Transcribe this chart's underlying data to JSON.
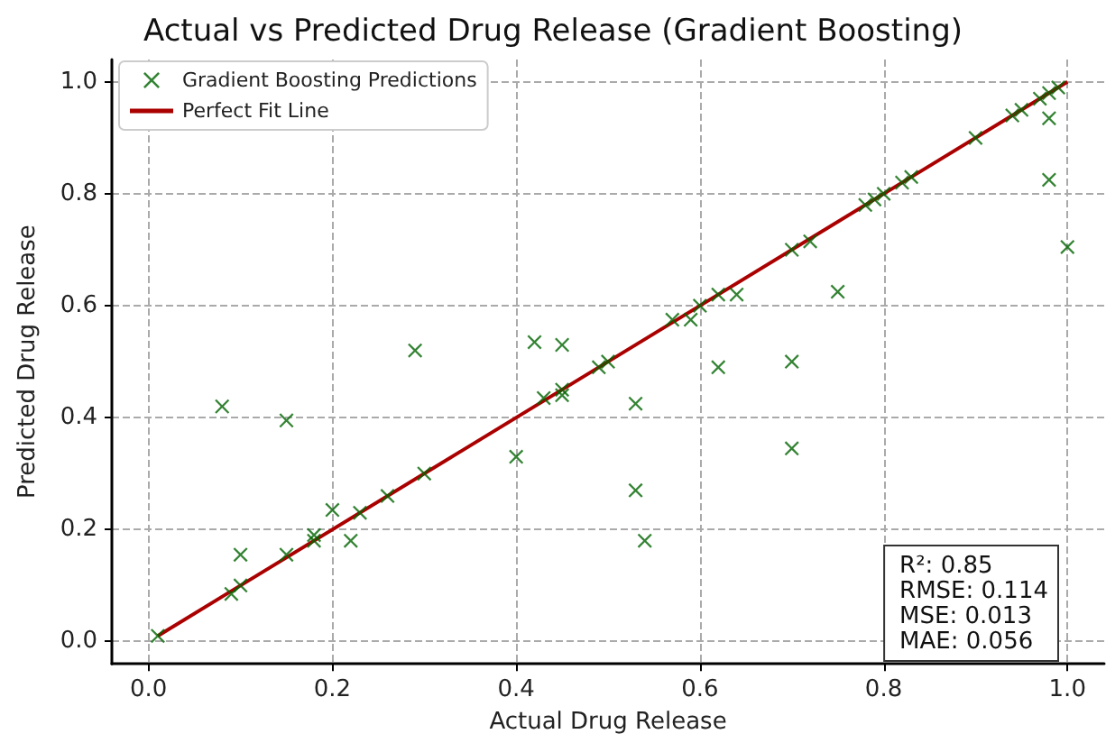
{
  "chart_data": {
    "type": "scatter",
    "title": "Actual vs Predicted Drug Release (Gradient Boosting)",
    "xlabel": "Actual Drug Release",
    "ylabel": "Predicted Drug Release",
    "xlim": [
      -0.04,
      1.04
    ],
    "xticks": [
      {
        "value": 0,
        "label": "0.0"
      },
      {
        "value": 0.2,
        "label": "0.2"
      },
      {
        "value": 0.4,
        "label": "0.4"
      },
      {
        "value": 0.6,
        "label": "0.6"
      },
      {
        "value": 0.8,
        "label": "0.8"
      },
      {
        "value": 1,
        "label": "1.0"
      }
    ],
    "ylim": [
      -0.04,
      1.04
    ],
    "yticks": [
      {
        "value": 0,
        "label": "0.0"
      },
      {
        "value": 0.2,
        "label": "0.2"
      },
      {
        "value": 0.4,
        "label": "0.4"
      },
      {
        "value": 0.6,
        "label": "0.6"
      },
      {
        "value": 0.8,
        "label": "0.8"
      },
      {
        "value": 1,
        "label": "1.0"
      }
    ],
    "grid": true,
    "legend": "top left",
    "marker": "cross",
    "annotations": [
      "R²: 0.85",
      "RMSE: 0.114",
      "MSE: 0.013",
      "MAE: 0.056"
    ],
    "series": [
      {
        "name": "Gradient Boosting Predictions",
        "color": "#006400",
        "x": [
          0.01,
          0.08,
          0.09,
          0.1,
          0.1,
          0.15,
          0.15,
          0.18,
          0.18,
          0.2,
          0.22,
          0.23,
          0.26,
          0.29,
          0.3,
          0.4,
          0.42,
          0.43,
          0.45,
          0.45,
          0.45,
          0.49,
          0.5,
          0.53,
          0.53,
          0.54,
          0.57,
          0.59,
          0.6,
          0.62,
          0.62,
          0.64,
          0.7,
          0.7,
          0.7,
          0.72,
          0.75,
          0.78,
          0.79,
          0.8,
          0.82,
          0.83,
          0.9,
          0.94,
          0.95,
          0.97,
          0.98,
          0.99,
          0.98,
          0.98,
          1.0
        ],
        "values": [
          0.01,
          0.42,
          0.085,
          0.1,
          0.155,
          0.395,
          0.155,
          0.18,
          0.19,
          0.235,
          0.18,
          0.23,
          0.26,
          0.52,
          0.3,
          0.33,
          0.535,
          0.435,
          0.44,
          0.45,
          0.53,
          0.49,
          0.5,
          0.425,
          0.27,
          0.18,
          0.575,
          0.575,
          0.6,
          0.49,
          0.62,
          0.62,
          0.5,
          0.345,
          0.7,
          0.715,
          0.625,
          0.78,
          0.79,
          0.8,
          0.82,
          0.83,
          0.9,
          0.94,
          0.95,
          0.97,
          0.98,
          0.99,
          0.935,
          0.825,
          0.705
        ]
      },
      {
        "name": "Perfect Fit Line",
        "type": "line",
        "color": "#aa0000",
        "line_style": "solid",
        "marker": "none",
        "x": [
          0.01,
          1.0
        ],
        "values": [
          0.01,
          1.0
        ]
      }
    ]
  }
}
